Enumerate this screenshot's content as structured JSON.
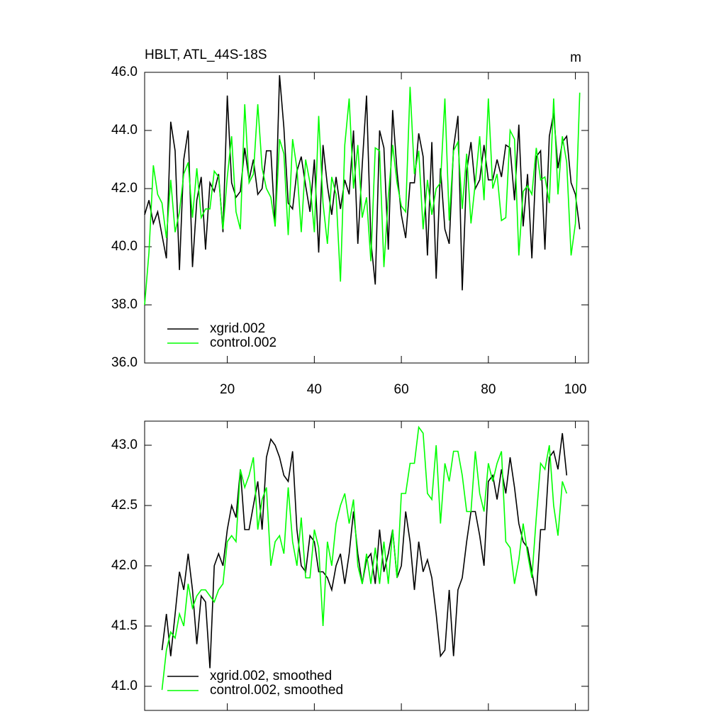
{
  "chart_data": [
    {
      "type": "line",
      "title": "HBLT, ATL_44S-18S",
      "unit_label": "m",
      "x": [
        1,
        2,
        3,
        4,
        5,
        6,
        7,
        8,
        9,
        10,
        11,
        12,
        13,
        14,
        15,
        16,
        17,
        18,
        19,
        20,
        21,
        22,
        23,
        24,
        25,
        26,
        27,
        28,
        29,
        30,
        31,
        32,
        33,
        34,
        35,
        36,
        37,
        38,
        39,
        40,
        41,
        42,
        43,
        44,
        45,
        46,
        47,
        48,
        49,
        50,
        51,
        52,
        53,
        54,
        55,
        56,
        57,
        58,
        59,
        60,
        61,
        62,
        63,
        64,
        65,
        66,
        67,
        68,
        69,
        70,
        71,
        72,
        73,
        74,
        75,
        76,
        77,
        78,
        79,
        80,
        81,
        82,
        83,
        84,
        85,
        86,
        87,
        88,
        89,
        90,
        91,
        92,
        93,
        94,
        95,
        96,
        97,
        98,
        99,
        100,
        101
      ],
      "series": [
        {
          "name": "xgrid.002",
          "color": "#000000",
          "values": [
            41.1,
            41.6,
            40.8,
            41.2,
            40.4,
            39.6,
            44.3,
            43.3,
            39.2,
            43.0,
            44.0,
            39.3,
            41.6,
            42.4,
            39.9,
            42.2,
            41.9,
            42.5,
            40.5,
            45.2,
            42.2,
            41.7,
            41.9,
            43.4,
            42.3,
            43.0,
            41.8,
            42.0,
            43.3,
            43.3,
            40.7,
            45.9,
            44.1,
            41.5,
            41.3,
            42.6,
            43.1,
            42.1,
            41.2,
            43.0,
            39.8,
            43.5,
            42.1,
            41.1,
            42.4,
            41.3,
            42.3,
            41.8,
            44.0,
            40.1,
            42.8,
            45.2,
            40.2,
            38.7,
            44.0,
            43.4,
            39.9,
            44.7,
            42.6,
            41.1,
            40.3,
            42.2,
            42.2,
            43.9,
            43.1,
            39.7,
            43.6,
            38.9,
            42.7,
            40.6,
            40.1,
            43.4,
            44.5,
            38.5,
            42.6,
            43.6,
            42.0,
            42.3,
            43.5,
            42.3,
            42.3,
            43.0,
            42.4,
            43.5,
            43.4,
            41.6,
            44.2,
            40.7,
            42.5,
            39.6,
            43.1,
            43.3,
            39.9,
            43.8,
            44.6,
            42.7,
            43.6,
            43.8,
            42.2,
            41.8,
            40.6
          ]
        },
        {
          "name": "control.002",
          "color": "#00ff00",
          "values": [
            38.0,
            39.8,
            42.8,
            41.8,
            41.5,
            40.3,
            42.3,
            40.5,
            41.2,
            42.5,
            42.9,
            41.0,
            42.7,
            41.0,
            41.3,
            41.3,
            42.6,
            42.4,
            40.6,
            42.4,
            43.8,
            41.2,
            40.6,
            44.9,
            42.2,
            42.5,
            44.9,
            42.7,
            42.0,
            41.7,
            40.7,
            43.7,
            43.2,
            40.4,
            43.7,
            42.7,
            40.5,
            43.0,
            42.2,
            40.5,
            44.5,
            41.5,
            40.1,
            42.4,
            41.8,
            38.8,
            43.5,
            45.1,
            42.0,
            43.5,
            41.0,
            41.7,
            39.5,
            43.4,
            43.3,
            39.3,
            41.7,
            43.5,
            42.2,
            41.4,
            41.2,
            45.5,
            42.5,
            43.3,
            40.6,
            42.3,
            41.1,
            42.0,
            42.2,
            45.1,
            40.9,
            43.3,
            43.6,
            41.3,
            43.2,
            40.8,
            42.2,
            43.8,
            41.6,
            45.1,
            42.0,
            42.5,
            40.9,
            41.0,
            44.0,
            43.7,
            39.7,
            41.9,
            42.1,
            41.8,
            43.4,
            42.3,
            42.4,
            41.5,
            45.1,
            41.8,
            43.8,
            42.9,
            39.7,
            40.8,
            45.3
          ]
        }
      ],
      "xlim": [
        1,
        103
      ],
      "xticks": [
        20,
        40,
        60,
        80,
        100
      ],
      "ylim": [
        36,
        46
      ],
      "yticks": [
        {
          "value": 36,
          "label": "36.0"
        },
        {
          "value": 38,
          "label": "38.0"
        },
        {
          "value": 40,
          "label": "40.0"
        },
        {
          "value": 42,
          "label": "42.0"
        },
        {
          "value": 44,
          "label": "44.0"
        },
        {
          "value": 46,
          "label": "46.0"
        }
      ],
      "legend": "lower-left"
    },
    {
      "type": "line",
      "x": [
        5,
        6,
        7,
        8,
        9,
        10,
        11,
        12,
        13,
        14,
        15,
        16,
        17,
        18,
        19,
        20,
        21,
        22,
        23,
        24,
        25,
        26,
        27,
        28,
        29,
        30,
        31,
        32,
        33,
        34,
        35,
        36,
        37,
        38,
        39,
        40,
        41,
        42,
        43,
        44,
        45,
        46,
        47,
        48,
        49,
        50,
        51,
        52,
        53,
        54,
        55,
        56,
        57,
        58,
        59,
        60,
        61,
        62,
        63,
        64,
        65,
        66,
        67,
        68,
        69,
        70,
        71,
        72,
        73,
        74,
        75,
        76,
        77,
        78,
        79,
        80,
        81,
        82,
        83,
        84,
        85,
        86,
        87,
        88,
        89,
        90,
        91,
        92,
        93,
        94,
        95,
        96,
        97,
        98
      ],
      "series": [
        {
          "name": "xgrid.002, smoothed",
          "color": "#000000",
          "values": [
            41.3,
            41.6,
            41.25,
            41.6,
            41.95,
            41.8,
            42.1,
            41.8,
            41.35,
            41.75,
            41.7,
            41.15,
            42.0,
            42.1,
            42.0,
            42.3,
            42.5,
            42.4,
            42.8,
            42.3,
            42.3,
            42.5,
            42.7,
            42.3,
            42.9,
            43.05,
            43.0,
            42.9,
            42.75,
            42.7,
            42.95,
            42.3,
            42.0,
            41.95,
            42.25,
            42.2,
            41.95,
            41.95,
            41.9,
            41.8,
            42.0,
            42.1,
            41.85,
            42.1,
            42.45,
            42.1,
            41.85,
            42.05,
            42.1,
            41.85,
            42.3,
            41.95,
            42.1,
            42.3,
            41.9,
            42.0,
            42.45,
            42.2,
            41.8,
            42.2,
            41.95,
            42.05,
            41.9,
            41.6,
            41.25,
            41.3,
            41.8,
            41.25,
            41.8,
            41.9,
            42.2,
            42.45,
            42.45,
            42.25,
            42.0,
            42.7,
            42.75,
            42.55,
            42.8,
            42.6,
            42.9,
            42.65,
            42.35,
            42.2,
            42.15,
            41.95,
            41.75,
            42.3,
            42.3,
            42.9,
            42.95,
            42.8,
            43.1,
            42.75
          ]
        },
        {
          "name": "control.002, smoothed",
          "color": "#00ff00",
          "values": [
            40.97,
            41.3,
            41.45,
            41.4,
            41.6,
            41.5,
            41.85,
            41.65,
            41.75,
            41.8,
            41.8,
            41.75,
            41.7,
            41.8,
            41.85,
            42.2,
            42.25,
            42.2,
            42.8,
            42.65,
            42.75,
            42.9,
            42.3,
            42.55,
            42.65,
            42.0,
            42.2,
            42.25,
            42.1,
            42.65,
            42.2,
            42.0,
            42.4,
            41.9,
            41.9,
            42.3,
            42.15,
            41.5,
            42.2,
            42.0,
            42.35,
            42.5,
            42.6,
            42.35,
            42.55,
            42.0,
            41.85,
            42.1,
            41.85,
            42.15,
            41.85,
            42.2,
            41.85,
            42.3,
            41.9,
            42.6,
            42.6,
            42.85,
            42.85,
            43.15,
            43.1,
            42.6,
            42.55,
            43.0,
            42.35,
            42.85,
            42.7,
            42.95,
            42.95,
            42.75,
            42.45,
            42.45,
            42.95,
            42.6,
            42.45,
            42.85,
            42.7,
            42.85,
            42.95,
            42.2,
            42.15,
            41.85,
            42.05,
            42.35,
            42.1,
            41.9,
            42.4,
            42.85,
            42.8,
            43.0,
            42.5,
            42.25,
            42.7,
            42.6
          ]
        }
      ],
      "xlim": [
        1,
        103
      ],
      "xticks": [
        20,
        40,
        60,
        80,
        100
      ],
      "ylim": [
        40.8,
        43.2
      ],
      "yticks": [
        {
          "value": 41,
          "label": "41.0"
        },
        {
          "value": 41.5,
          "label": "41.5"
        },
        {
          "value": 42,
          "label": "42.0"
        },
        {
          "value": 42.5,
          "label": "42.5"
        },
        {
          "value": 43,
          "label": "43.0"
        }
      ],
      "legend": "lower-left"
    }
  ]
}
